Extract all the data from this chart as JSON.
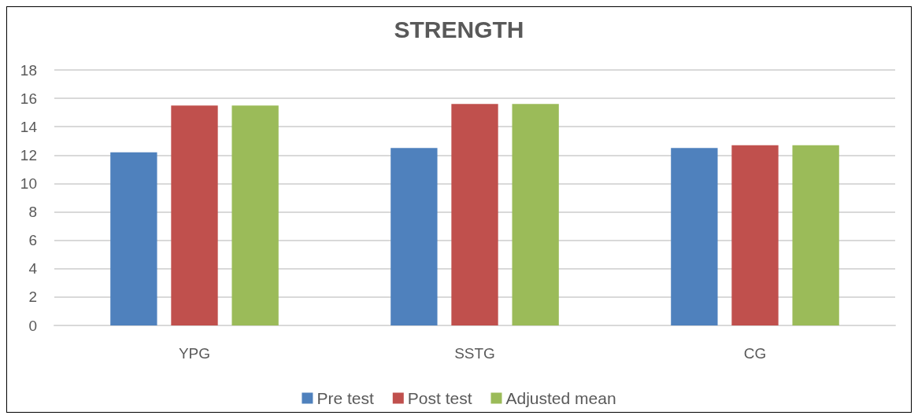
{
  "chart_data": {
    "type": "bar",
    "title": "STRENGTH",
    "categories": [
      "YPG",
      "SSTG",
      "CG"
    ],
    "series": [
      {
        "name": "Pre test",
        "color": "#4f81bd",
        "values": [
          12.2,
          12.5,
          12.5
        ]
      },
      {
        "name": "Post test",
        "color": "#c0504d",
        "values": [
          15.5,
          15.6,
          12.7
        ]
      },
      {
        "name": "Adjusted mean",
        "color": "#9bbb59",
        "values": [
          15.5,
          15.6,
          12.7
        ]
      }
    ],
    "ylim": [
      0,
      18
    ],
    "yticks": [
      0,
      2,
      4,
      6,
      8,
      10,
      12,
      14,
      16,
      18
    ],
    "grid": "y",
    "legend": "bottom"
  }
}
